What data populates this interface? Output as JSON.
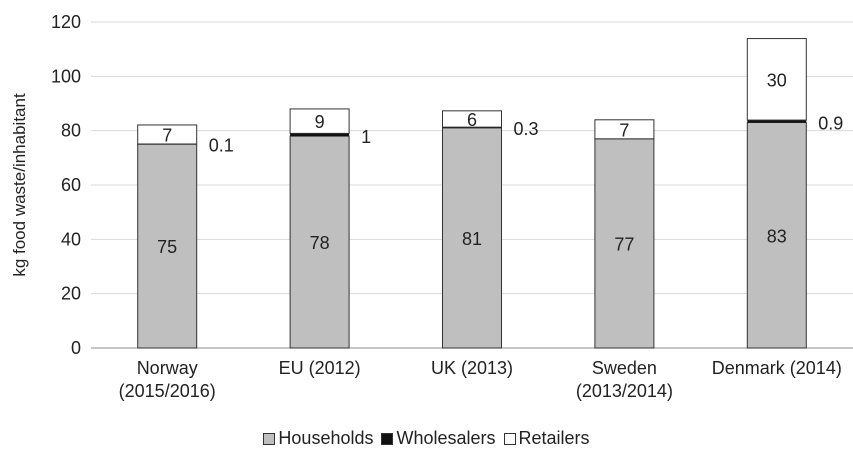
{
  "chart_data": {
    "type": "bar",
    "stacked": true,
    "ylabel": "kg food waste/inhabitant",
    "ylim": [
      0,
      120
    ],
    "yticks": [
      0,
      20,
      40,
      60,
      80,
      100,
      120
    ],
    "grid": true,
    "legend_position": "bottom",
    "categories": [
      [
        "Norway",
        "(2015/2016)"
      ],
      [
        "EU (2012)"
      ],
      [
        "UK (2013)"
      ],
      [
        "Sweden",
        "(2013/2014)"
      ],
      [
        "Denmark (2014)"
      ]
    ],
    "series": [
      {
        "name": "Households",
        "color": "#bfbfbf",
        "values": [
          75,
          78,
          81,
          77,
          83
        ],
        "labels": [
          "75",
          "78",
          "81",
          "77",
          "83"
        ]
      },
      {
        "name": "Wholesalers",
        "color": "#111111",
        "values": [
          0.1,
          1,
          0.3,
          0,
          0.9
        ],
        "labels": [
          "0.1",
          "1",
          "0.3",
          "",
          "0.9"
        ]
      },
      {
        "name": "Retailers",
        "color": "#ffffff",
        "values": [
          7,
          9,
          6,
          7,
          30
        ],
        "labels": [
          "7",
          "9",
          "6",
          "7",
          "30"
        ]
      }
    ]
  }
}
